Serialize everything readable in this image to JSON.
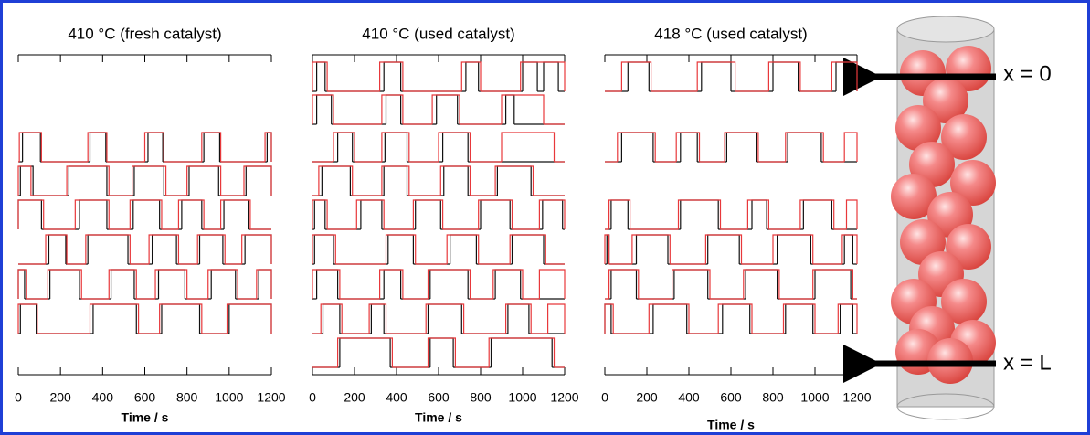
{
  "chart_data": [
    {
      "type": "step",
      "title": "410 °C (fresh catalyst)",
      "xlabel": "Time / s",
      "xlim": [
        0,
        1200
      ],
      "xticks": [
        0,
        200,
        400,
        600,
        800,
        1000,
        1200
      ],
      "rows": [
        {
          "red": [
            [
              5,
              110
            ],
            [
              330,
              420
            ],
            [
              600,
              690
            ],
            [
              870,
              960
            ],
            [
              1170,
              1200
            ]
          ],
          "black": [
            [
              20,
              105
            ],
            [
              340,
              415
            ],
            [
              615,
              685
            ],
            [
              880,
              955
            ],
            [
              1180,
              1200
            ]
          ]
        },
        {
          "red": [
            [
              0,
              60
            ],
            [
              230,
              430
            ],
            [
              540,
              700
            ],
            [
              800,
              960
            ],
            [
              1070,
              1200
            ]
          ],
          "black": [
            [
              10,
              70
            ],
            [
              240,
              420
            ],
            [
              550,
              690
            ],
            [
              810,
              950
            ],
            [
              1080,
              1200
            ]
          ]
        },
        {
          "red": [
            [
              0,
              120
            ],
            [
              270,
              430
            ],
            [
              530,
              680
            ],
            [
              760,
              880
            ],
            [
              960,
              1100
            ]
          ],
          "black": [
            [
              0,
              110
            ],
            [
              290,
              420
            ],
            [
              545,
              670
            ],
            [
              775,
              870
            ],
            [
              975,
              1090
            ]
          ]
        },
        {
          "red": [
            [
              130,
              230
            ],
            [
              320,
              530
            ],
            [
              620,
              760
            ],
            [
              850,
              980
            ],
            [
              1060,
              1200
            ]
          ],
          "black": [
            [
              145,
              225
            ],
            [
              330,
              520
            ],
            [
              635,
              750
            ],
            [
              860,
              970
            ],
            [
              1075,
              1200
            ]
          ]
        },
        {
          "red": [
            [
              0,
              40
            ],
            [
              140,
              300
            ],
            [
              430,
              560
            ],
            [
              650,
              800
            ],
            [
              900,
              1040
            ],
            [
              1130,
              1200
            ]
          ],
          "black": [
            [
              0,
              30
            ],
            [
              150,
              290
            ],
            [
              440,
              550
            ],
            [
              665,
              790
            ],
            [
              915,
              1030
            ],
            [
              1140,
              1200
            ]
          ]
        },
        {
          "red": [
            [
              0,
              90
            ],
            [
              340,
              570
            ],
            [
              670,
              870
            ],
            [
              990,
              1200
            ]
          ],
          "black": [
            [
              10,
              85
            ],
            [
              355,
              560
            ],
            [
              680,
              860
            ],
            [
              1000,
              1200
            ]
          ]
        }
      ]
    },
    {
      "type": "step",
      "title": "410 °C (used catalyst)",
      "xlabel": "Time / s",
      "xlim": [
        0,
        1200
      ],
      "xticks": [
        0,
        200,
        400,
        600,
        800,
        1000,
        1200
      ],
      "rows": [
        {
          "red": [
            [
              0,
              70
            ],
            [
              320,
              430
            ],
            [
              710,
              800
            ],
            [
              990,
              1200
            ]
          ],
          "black": [
            [
              20,
              60
            ],
            [
              340,
              420
            ],
            [
              730,
              790
            ],
            [
              1000,
              1070
            ],
            [
              1100,
              1170
            ]
          ]
        },
        {
          "red": [
            [
              0,
              100
            ],
            [
              330,
              430
            ],
            [
              570,
              700
            ],
            [
              900,
              1100
            ]
          ],
          "black": [
            [
              20,
              90
            ],
            [
              350,
              420
            ],
            [
              590,
              690
            ],
            [
              920,
              960
            ]
          ]
        },
        {
          "red": [
            [
              100,
              200
            ],
            [
              330,
              460
            ],
            [
              600,
              750
            ],
            [
              900,
              1150
            ]
          ],
          "black": [
            [
              120,
              190
            ],
            [
              345,
              450
            ],
            [
              620,
              740
            ]
          ]
        },
        {
          "red": [
            [
              30,
              190
            ],
            [
              330,
              460
            ],
            [
              610,
              750
            ],
            [
              870,
              1050
            ]
          ],
          "black": [
            [
              45,
              180
            ],
            [
              340,
              450
            ],
            [
              625,
              740
            ],
            [
              880,
              1040
            ]
          ]
        },
        {
          "red": [
            [
              0,
              70
            ],
            [
              210,
              340
            ],
            [
              480,
              620
            ],
            [
              790,
              950
            ],
            [
              1080,
              1200
            ]
          ],
          "black": [
            [
              10,
              60
            ],
            [
              230,
              330
            ],
            [
              490,
              610
            ],
            [
              800,
              940
            ],
            [
              1095,
              1190
            ]
          ]
        },
        {
          "red": [
            [
              0,
              110
            ],
            [
              350,
              490
            ],
            [
              640,
              790
            ],
            [
              940,
              1110
            ]
          ],
          "black": [
            [
              10,
              100
            ],
            [
              360,
              480
            ],
            [
              655,
              780
            ],
            [
              950,
              1100
            ]
          ]
        },
        {
          "red": [
            [
              0,
              130
            ],
            [
              320,
              430
            ],
            [
              550,
              750
            ],
            [
              860,
              1000
            ],
            [
              1080,
              1200
            ]
          ],
          "black": [
            [
              20,
              120
            ],
            [
              340,
              420
            ],
            [
              560,
              740
            ],
            [
              870,
              990
            ]
          ]
        },
        {
          "red": [
            [
              40,
              140
            ],
            [
              270,
              350
            ],
            [
              540,
              720
            ],
            [
              920,
              1040
            ],
            [
              1120,
              1200
            ]
          ],
          "black": [
            [
              50,
              130
            ],
            [
              280,
              340
            ],
            [
              550,
              710
            ],
            [
              930,
              1030
            ]
          ]
        },
        {
          "red": [
            [
              120,
              380
            ],
            [
              550,
              680
            ],
            [
              840,
              1150
            ]
          ],
          "black": [
            [
              130,
              370
            ],
            [
              560,
              670
            ],
            [
              850,
              1140
            ]
          ]
        }
      ]
    },
    {
      "type": "step",
      "title": "418 °C (used catalyst)",
      "xlabel": "Time / s",
      "xlim": [
        0,
        1200
      ],
      "xticks": [
        0,
        200,
        400,
        600,
        800,
        1000,
        1200
      ],
      "rows": [
        {
          "red": [
            [
              80,
              220
            ],
            [
              440,
              620
            ],
            [
              780,
              930
            ],
            [
              1080,
              1200
            ]
          ],
          "black": [
            [
              110,
              210
            ],
            [
              460,
              600
            ],
            [
              800,
              920
            ],
            [
              1100,
              1200
            ]
          ]
        },
        {
          "red": [
            [
              60,
              240
            ],
            [
              340,
              450
            ],
            [
              570,
              730
            ],
            [
              860,
              1040
            ],
            [
              1140,
              1200
            ]
          ],
          "black": [
            [
              80,
              230
            ],
            [
              360,
              440
            ],
            [
              580,
              720
            ],
            [
              870,
              1030
            ]
          ]
        },
        {
          "red": [
            [
              20,
              120
            ],
            [
              350,
              550
            ],
            [
              680,
              780
            ],
            [
              930,
              1090
            ],
            [
              1150,
              1200
            ]
          ],
          "black": [
            [
              30,
              110
            ],
            [
              360,
              540
            ],
            [
              700,
              770
            ],
            [
              945,
              1080
            ]
          ]
        },
        {
          "red": [
            [
              0,
              20
            ],
            [
              130,
              310
            ],
            [
              480,
              650
            ],
            [
              800,
              990
            ],
            [
              1130,
              1200
            ]
          ],
          "black": [
            [
              10,
              20
            ],
            [
              150,
              300
            ],
            [
              490,
              640
            ],
            [
              820,
              980
            ],
            [
              1140,
              1180
            ]
          ]
        },
        {
          "red": [
            [
              20,
              160
            ],
            [
              320,
              500
            ],
            [
              660,
              830
            ],
            [
              990,
              1180
            ]
          ],
          "black": [
            [
              30,
              150
            ],
            [
              330,
              490
            ],
            [
              670,
              820
            ],
            [
              1000,
              1170
            ]
          ]
        },
        {
          "red": [
            [
              0,
              40
            ],
            [
              210,
              400
            ],
            [
              540,
              700
            ],
            [
              850,
              1000
            ],
            [
              1110,
              1200
            ]
          ],
          "black": [
            [
              0,
              30
            ],
            [
              230,
              390
            ],
            [
              560,
              690
            ],
            [
              860,
              990
            ],
            [
              1120,
              1180
            ]
          ]
        }
      ]
    }
  ],
  "labels": {
    "top": "x = 0",
    "bottom": "x = L"
  }
}
